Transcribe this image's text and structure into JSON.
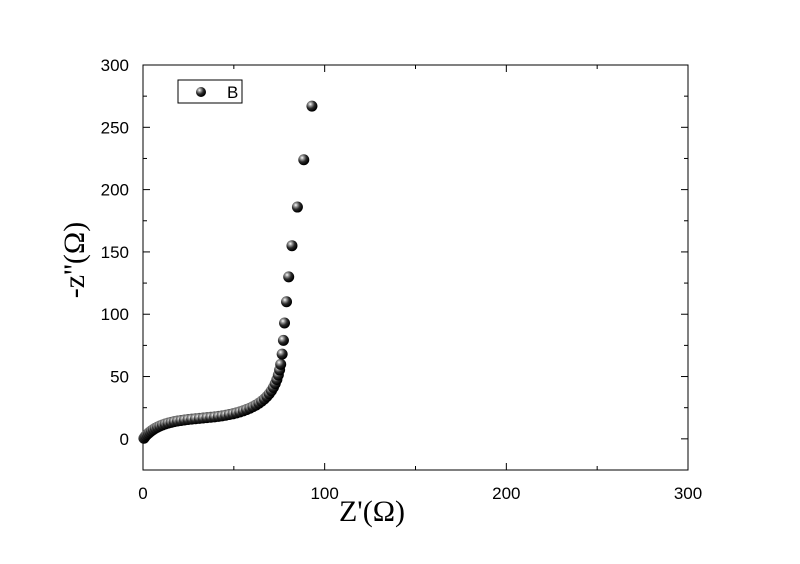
{
  "chart_data": {
    "type": "scatter",
    "xlabel": "Z'(Ω)",
    "ylabel": "-z''(Ω)",
    "xlim": [
      0,
      300
    ],
    "ylim": [
      -25,
      300
    ],
    "xticks": [
      0,
      100,
      200,
      300
    ],
    "yticks": [
      0,
      50,
      100,
      150,
      200,
      250,
      300
    ],
    "xtick_labels": [
      "0",
      "100",
      "200",
      "300"
    ],
    "ytick_labels": [
      "0",
      "50",
      "100",
      "150",
      "200",
      "250",
      "300"
    ],
    "grid": false,
    "legend_position": "top-left",
    "marker_color": "#111111",
    "series": [
      {
        "name": "B",
        "points": [
          [
            0.5,
            0.5
          ],
          [
            1.0,
            1.5
          ],
          [
            1.5,
            2.5
          ],
          [
            2.2,
            3.5
          ],
          [
            3.0,
            4.5
          ],
          [
            3.8,
            5.5
          ],
          [
            4.7,
            6.5
          ],
          [
            5.7,
            7.5
          ],
          [
            6.8,
            8.5
          ],
          [
            8.0,
            9.4
          ],
          [
            9.3,
            10.3
          ],
          [
            10.7,
            11.1
          ],
          [
            12.2,
            11.9
          ],
          [
            13.8,
            12.6
          ],
          [
            15.5,
            13.2
          ],
          [
            17.2,
            13.8
          ],
          [
            19.0,
            14.3
          ],
          [
            20.9,
            14.7
          ],
          [
            22.8,
            15.1
          ],
          [
            24.8,
            15.5
          ],
          [
            26.8,
            15.8
          ],
          [
            28.9,
            16.1
          ],
          [
            31.0,
            16.4
          ],
          [
            33.1,
            16.7
          ],
          [
            35.2,
            17.0
          ],
          [
            37.3,
            17.3
          ],
          [
            39.4,
            17.6
          ],
          [
            41.5,
            18.0
          ],
          [
            43.5,
            18.4
          ],
          [
            45.5,
            18.9
          ],
          [
            47.5,
            19.5
          ],
          [
            49.5,
            20.1
          ],
          [
            51.4,
            20.8
          ],
          [
            53.3,
            21.6
          ],
          [
            55.2,
            22.5
          ],
          [
            57.0,
            23.5
          ],
          [
            58.8,
            24.6
          ],
          [
            60.5,
            25.8
          ],
          [
            62.2,
            27.1
          ],
          [
            63.8,
            28.6
          ],
          [
            65.3,
            30.2
          ],
          [
            66.8,
            32.0
          ],
          [
            68.2,
            34.0
          ],
          [
            69.5,
            36.2
          ],
          [
            70.7,
            38.6
          ],
          [
            71.8,
            41.3
          ],
          [
            72.8,
            44.3
          ],
          [
            73.7,
            47.6
          ],
          [
            74.5,
            51.2
          ],
          [
            75.2,
            55.3
          ],
          [
            75.8,
            59.8
          ],
          [
            76.6,
            68.0
          ],
          [
            77.3,
            79.0
          ],
          [
            77.9,
            93.0
          ],
          [
            79.0,
            110.0
          ],
          [
            80.2,
            130.0
          ],
          [
            82.0,
            155.0
          ],
          [
            85.0,
            186.0
          ],
          [
            88.5,
            224.0
          ],
          [
            93.0,
            267.0
          ]
        ]
      }
    ]
  }
}
